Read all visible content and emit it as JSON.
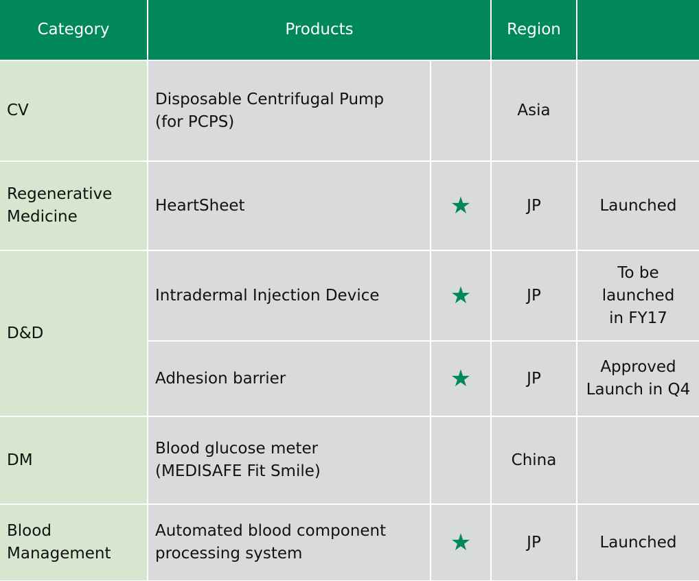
{
  "header": {
    "columns": [
      "Category",
      "Products",
      "Region"
    ]
  },
  "groups": [
    {
      "category": "CV",
      "items": [
        {
          "product": "Disposable Centrifugal Pump\n(for PCPS)",
          "region": "Asia"
        }
      ]
    },
    {
      "category": "Regenerative\nMedicine",
      "items": [
        {
          "product": "HeartSheet",
          "star": "★",
          "region": "JP",
          "status": "Launched"
        }
      ]
    },
    {
      "category": "D&D",
      "items": [
        {
          "product": "Intradermal Injection Device",
          "star": "★",
          "region": "JP",
          "status": "To be\nlaunched\nin FY17"
        },
        {
          "product": "Adhesion barrier",
          "star": "★",
          "region": "JP",
          "status": "Approved\nLaunch in Q4"
        }
      ]
    },
    {
      "category": "DM",
      "items": [
        {
          "product": "Blood glucose meter\n(MEDISAFE Fit Smile)",
          "region": "China"
        }
      ]
    },
    {
      "category": "Blood\nManagement",
      "items": [
        {
          "product": "Automated blood component\nprocessing system",
          "star": "★",
          "region": "JP",
          "status": "Launched"
        }
      ]
    }
  ]
}
